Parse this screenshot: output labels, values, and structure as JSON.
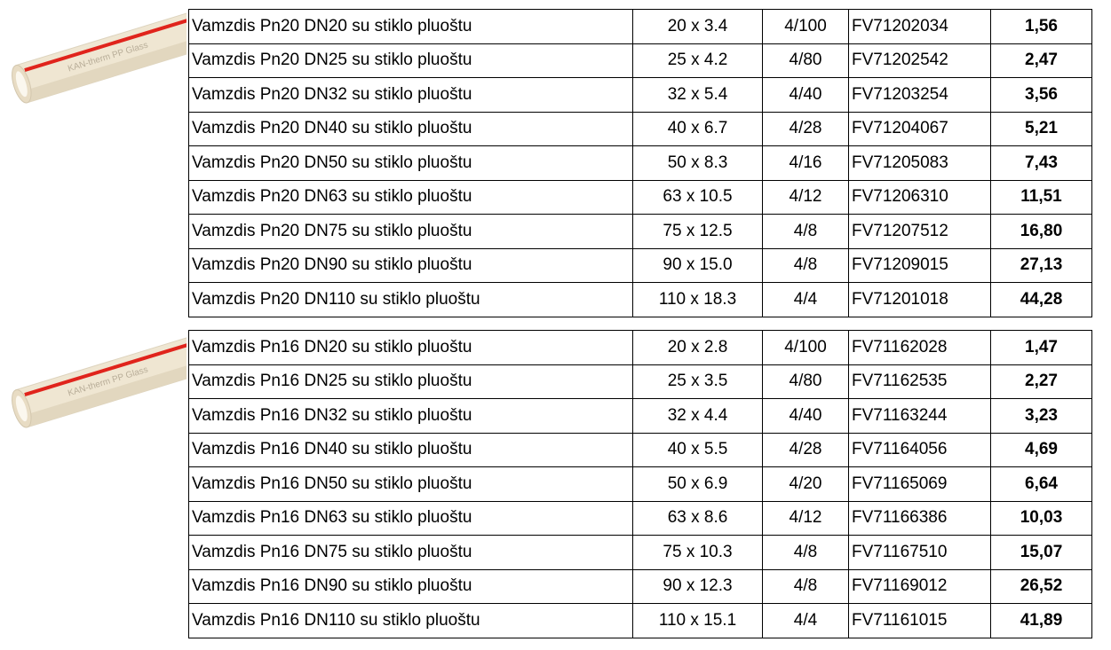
{
  "groups": [
    {
      "pipe_label": "KAN-therm PP Glass",
      "rows": [
        [
          "Vamzdis Pn20 DN20 su stiklo pluoštu",
          "20 x 3.4",
          "4/100",
          "FV71202034",
          "1,56"
        ],
        [
          "Vamzdis Pn20 DN25 su stiklo pluoštu",
          "25 x 4.2",
          "4/80",
          "FV71202542",
          "2,47"
        ],
        [
          "Vamzdis Pn20 DN32 su stiklo pluoštu",
          "32 x 5.4",
          "4/40",
          "FV71203254",
          "3,56"
        ],
        [
          "Vamzdis Pn20 DN40 su stiklo pluoštu",
          "40 x 6.7",
          "4/28",
          "FV71204067",
          "5,21"
        ],
        [
          "Vamzdis Pn20 DN50 su stiklo pluoštu",
          "50 x 8.3",
          "4/16",
          "FV71205083",
          "7,43"
        ],
        [
          "Vamzdis Pn20 DN63 su stiklo pluoštu",
          "63 x 10.5",
          "4/12",
          "FV71206310",
          "11,51"
        ],
        [
          "Vamzdis Pn20 DN75 su stiklo pluoštu",
          "75 x 12.5",
          "4/8",
          "FV71207512",
          "16,80"
        ],
        [
          "Vamzdis Pn20 DN90 su stiklo pluoštu",
          "90 x 15.0",
          "4/8",
          "FV71209015",
          "27,13"
        ],
        [
          "Vamzdis Pn20 DN110 su stiklo pluoštu",
          "110 x 18.3",
          "4/4",
          "FV71201018",
          "44,28"
        ]
      ]
    },
    {
      "pipe_label": "KAN-therm PP Glass",
      "rows": [
        [
          "Vamzdis Pn16 DN20 su stiklo pluoštu",
          "20 x 2.8",
          "4/100",
          "FV71162028",
          "1,47"
        ],
        [
          "Vamzdis Pn16 DN25 su stiklo pluoštu",
          "25 x 3.5",
          "4/80",
          "FV71162535",
          "2,27"
        ],
        [
          "Vamzdis Pn16 DN32 su stiklo pluoštu",
          "32 x 4.4",
          "4/40",
          "FV71163244",
          "3,23"
        ],
        [
          "Vamzdis Pn16 DN40 su stiklo pluoštu",
          "40 x 5.5",
          "4/28",
          "FV71164056",
          "4,69"
        ],
        [
          "Vamzdis Pn16 DN50 su stiklo pluoštu",
          "50 x 6.9",
          "4/20",
          "FV71165069",
          "6,64"
        ],
        [
          "Vamzdis Pn16 DN63 su stiklo pluoštu",
          "63 x 8.6",
          "4/12",
          "FV71166386",
          "10,03"
        ],
        [
          "Vamzdis Pn16 DN75 su stiklo pluoštu",
          "75 x 10.3",
          "4/8",
          "FV71167510",
          "15,07"
        ],
        [
          "Vamzdis Pn16 DN90 su stiklo pluoštu",
          "90 x 12.3",
          "4/8",
          "FV71169012",
          "26,52"
        ],
        [
          "Vamzdis Pn16 DN110 su stiklo pluoštu",
          "110 x 15.1",
          "4/4",
          "FV71161015",
          "41,89"
        ]
      ]
    }
  ]
}
